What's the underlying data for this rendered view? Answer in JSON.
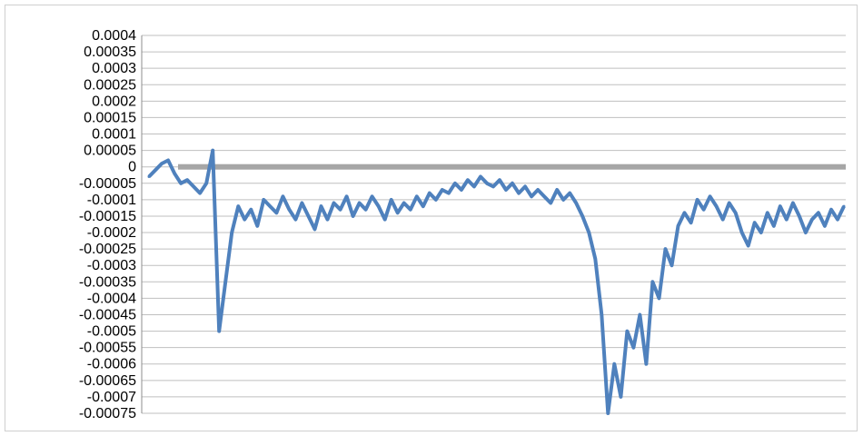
{
  "chart_data": {
    "type": "line",
    "title": "",
    "xlabel": "",
    "ylabel": "",
    "ylim": [
      -0.00075,
      0.0004
    ],
    "y_ticks": [
      "0.0004",
      "0.00035",
      "0.0003",
      "0.00025",
      "0.0002",
      "0.00015",
      "0.0001",
      "0.00005",
      "0",
      "-0.00005",
      "-0.0001",
      "-0.00015",
      "-0.0002",
      "-0.00025",
      "-0.0003",
      "-0.00035",
      "-0.0004",
      "-0.00045",
      "-0.0005",
      "-0.00055",
      "-0.0006",
      "-0.00065",
      "-0.0007",
      "-0.00075"
    ],
    "grid": true,
    "legend": "none",
    "x_count": 110,
    "series": [
      {
        "color": "#4f81bd",
        "values": [
          -3e-05,
          -1e-05,
          1e-05,
          2e-05,
          -2e-05,
          -5e-05,
          -4e-05,
          -6e-05,
          -8e-05,
          -5e-05,
          5e-05,
          -0.0005,
          -0.00035,
          -0.0002,
          -0.00012,
          -0.00016,
          -0.00013,
          -0.00018,
          -0.0001,
          -0.00012,
          -0.00014,
          -9e-05,
          -0.00013,
          -0.00016,
          -0.00011,
          -0.00015,
          -0.00019,
          -0.00012,
          -0.00016,
          -0.00011,
          -0.00013,
          -9e-05,
          -0.00015,
          -0.00011,
          -0.00013,
          -9e-05,
          -0.00012,
          -0.00016,
          -0.0001,
          -0.00014,
          -0.00011,
          -0.00013,
          -9e-05,
          -0.00012,
          -8e-05,
          -0.0001,
          -7e-05,
          -8e-05,
          -5e-05,
          -7e-05,
          -4e-05,
          -6e-05,
          -3e-05,
          -5e-05,
          -6e-05,
          -4e-05,
          -7e-05,
          -5e-05,
          -8e-05,
          -6e-05,
          -9e-05,
          -7e-05,
          -9e-05,
          -0.00011,
          -7e-05,
          -0.0001,
          -8e-05,
          -0.00011,
          -0.00015,
          -0.0002,
          -0.00028,
          -0.00045,
          -0.00075,
          -0.0006,
          -0.0007,
          -0.0005,
          -0.00055,
          -0.00045,
          -0.0006,
          -0.00035,
          -0.0004,
          -0.00025,
          -0.0003,
          -0.00018,
          -0.00014,
          -0.00017,
          -0.0001,
          -0.00013,
          -9e-05,
          -0.00012,
          -0.00016,
          -0.00011,
          -0.00014,
          -0.0002,
          -0.00024,
          -0.00017,
          -0.0002,
          -0.00014,
          -0.00018,
          -0.00012,
          -0.00016,
          -0.00011,
          -0.00015,
          -0.0002,
          -0.00016,
          -0.00014,
          -0.00018,
          -0.00013,
          -0.00016,
          -0.00012
        ]
      }
    ]
  }
}
